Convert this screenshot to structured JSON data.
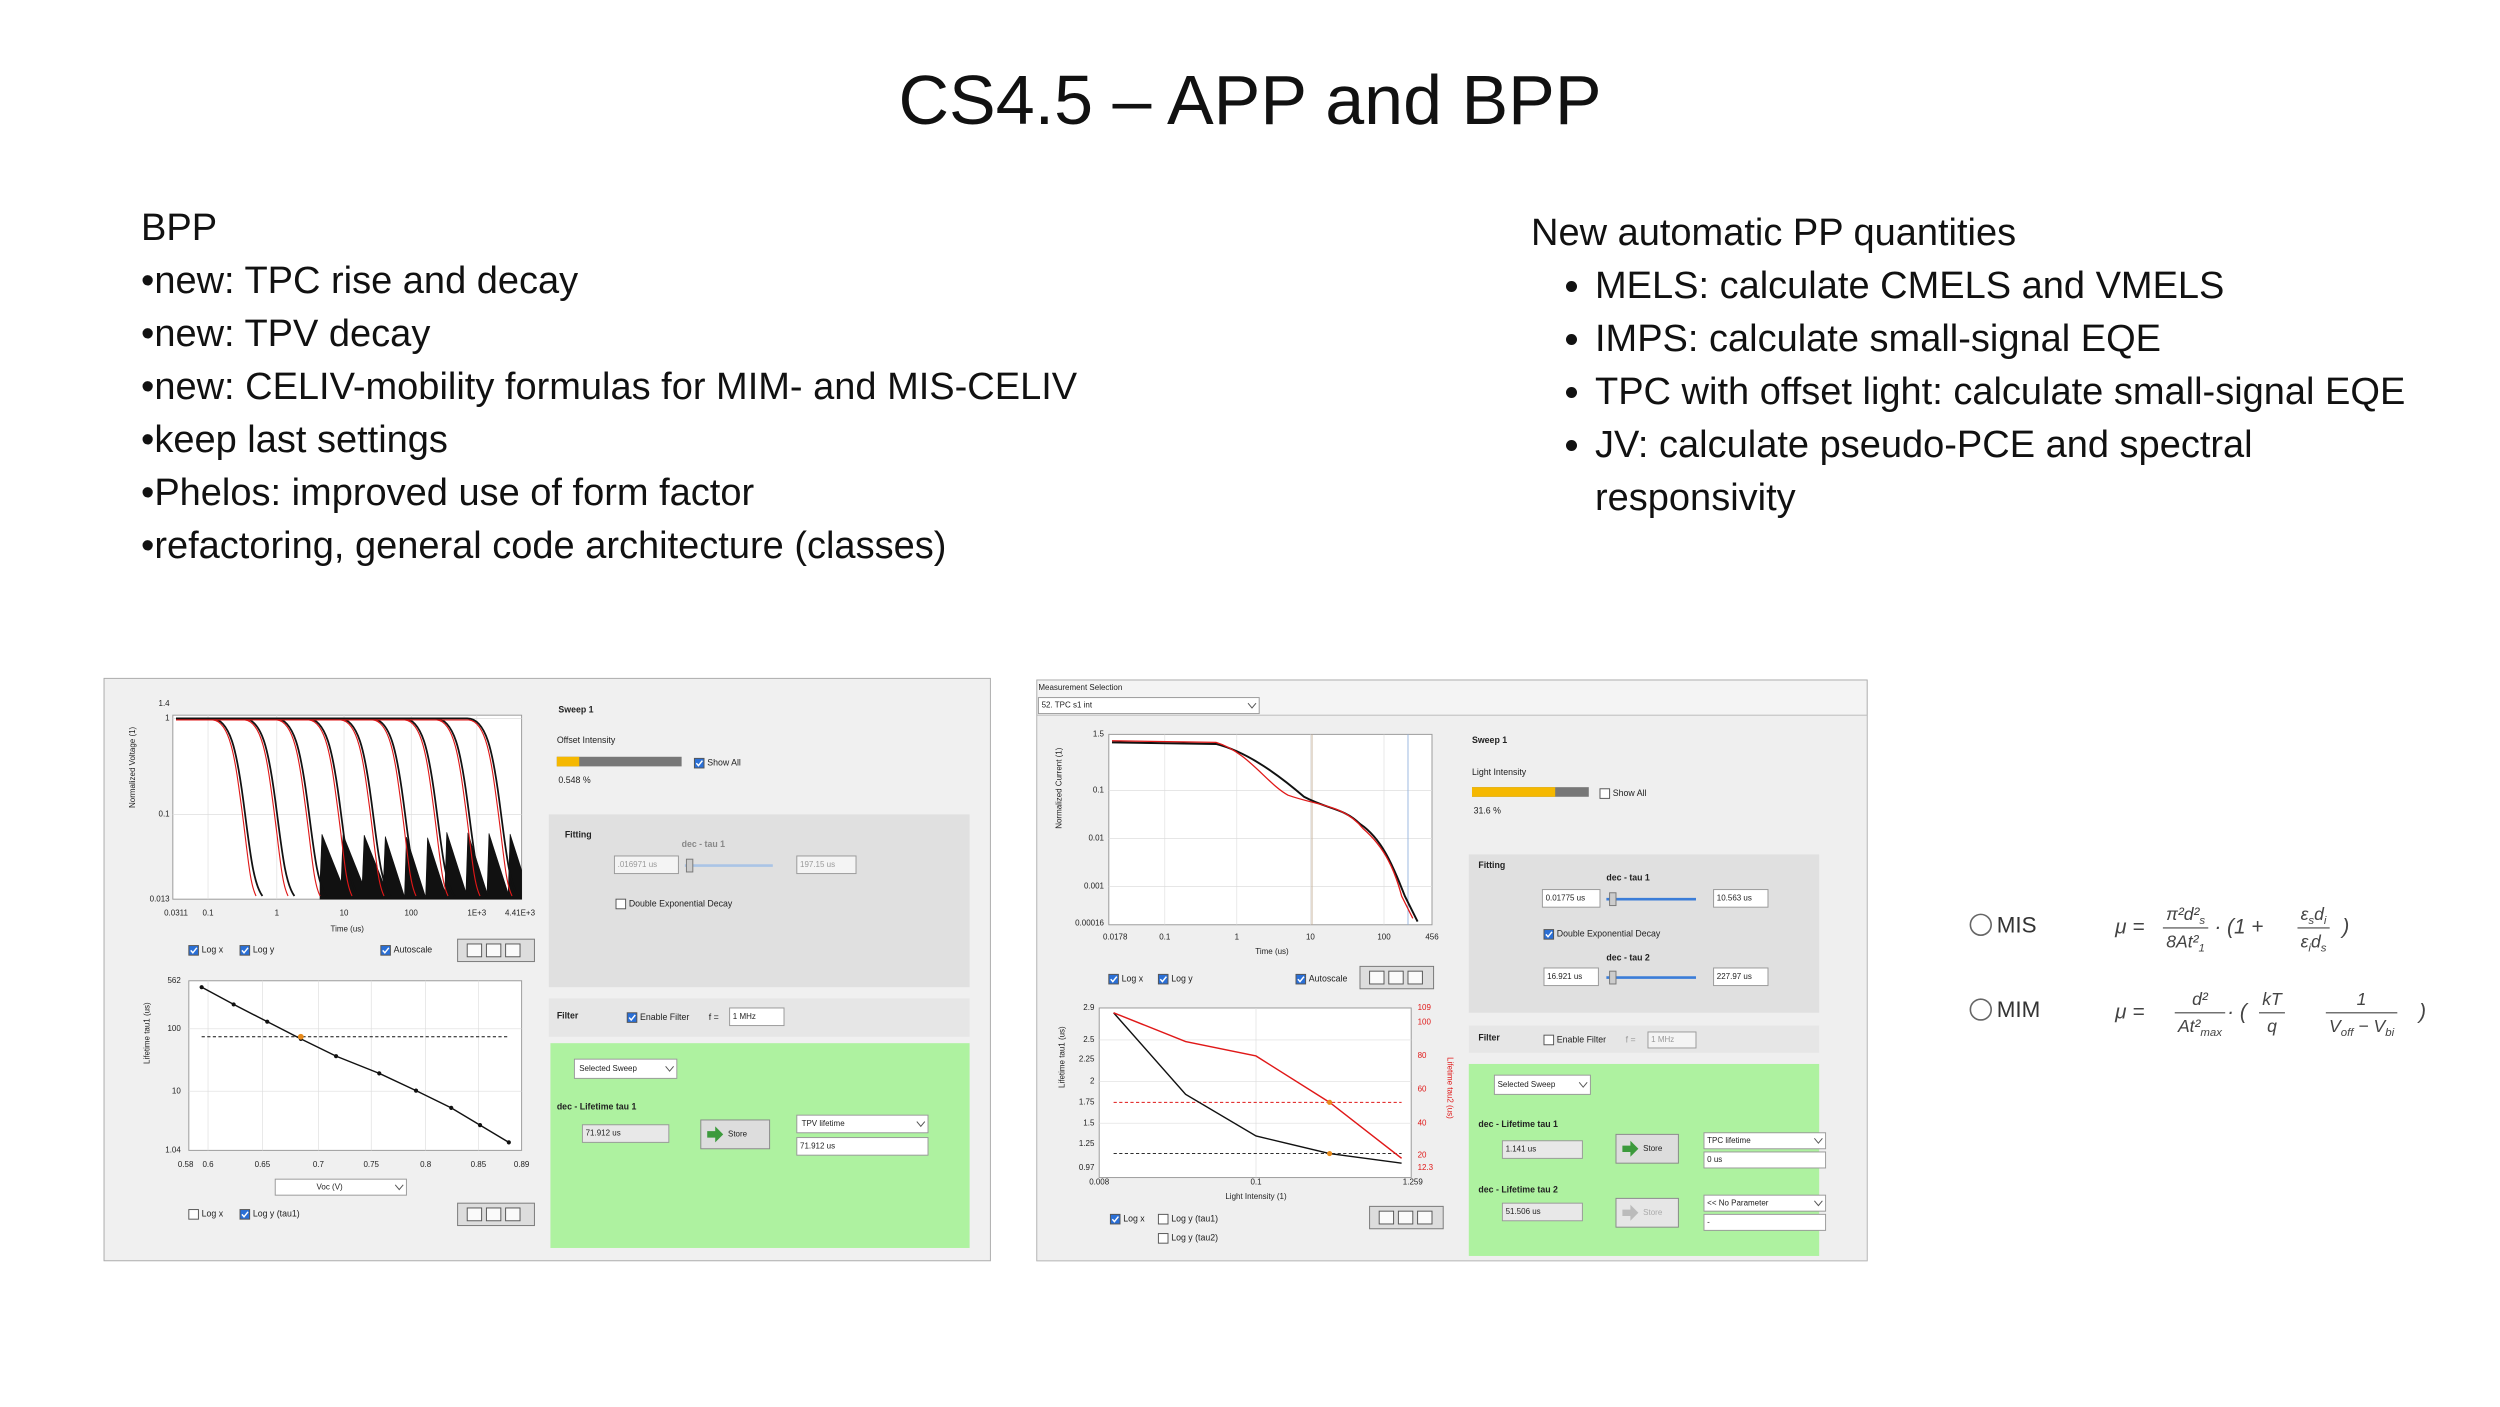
{
  "title": "CS4.5 – APP and BPP",
  "left": {
    "heading": "BPP",
    "items": [
      "new: TPC rise and decay",
      "new: TPV decay",
      "new: CELIV-mobility formulas for MIM- and MIS-CELIV",
      "keep last settings",
      "Phelos: improved use of form factor",
      "refactoring, general code architecture (classes)"
    ]
  },
  "right": {
    "heading": "New automatic PP quantities",
    "items": [
      "MELS: calculate CMELS and VMELS",
      "IMPS: calculate small-signal EQE",
      "TPC with offset light: calculate small-signal EQE",
      "JV: calculate pseudo-PCE and spectral responsivity"
    ]
  },
  "tpv": {
    "y_axis_label": "Normalized Voltage (1)",
    "y_ticks": [
      "1.4",
      "1",
      "0.1",
      "0.013"
    ],
    "x_ticks": [
      "0.0311",
      "0.1",
      "1",
      "10",
      "100",
      "1E+3",
      "4.41E+3"
    ],
    "x_axis_label": "Time (us)",
    "log_x": "Log x",
    "log_y": "Log y",
    "autoscale": "Autoscale",
    "sweep": "Sweep 1",
    "offset_intensity": "Offset Intensity",
    "show_all": "Show All",
    "intensity_value": "0.548 %",
    "fitting": "Fitting",
    "tau1_label": "dec - tau 1",
    "tau1_min": ".016971 us",
    "tau1_max": "197.15 us",
    "double_exp": "Double Exponential Decay",
    "filter": "Filter",
    "enable_filter": "Enable Filter",
    "f_eq": "f =",
    "f_value": "1 MHz",
    "selected_sweep": "Selected Sweep",
    "lifetime_tau1": "dec - Lifetime tau 1",
    "lifetime_tau1_value": "71.912 us",
    "store": "Store",
    "param": "TPV lifetime",
    "param_value": "71.912 us",
    "lower_y_label": "Lifetime tau1 (us)",
    "lower_y_ticks": [
      "562",
      "100",
      "10",
      "1.04"
    ],
    "lower_x_ticks": [
      "0.58",
      "0.6",
      "0.65",
      "0.7",
      "0.75",
      "0.8",
      "0.85",
      "0.89"
    ],
    "x_select": "Voc (V)",
    "lower_log_x": "Log x",
    "lower_log_y": "Log y (tau1)"
  },
  "tpc": {
    "measurement_selection": "Measurement Selection",
    "measurement": "52. TPC s1 int",
    "y_axis_label": "Normalized Current (1)",
    "y_ticks": [
      "1.5",
      "0.1",
      "0.01",
      "0.001",
      "0.00016"
    ],
    "x_ticks": [
      "0.0178",
      "0.1",
      "1",
      "10",
      "100",
      "456"
    ],
    "x_axis_label": "Time (us)",
    "log_x": "Log x",
    "log_y": "Log y",
    "autoscale": "Autoscale",
    "sweep": "Sweep 1",
    "light_intensity": "Light Intensity",
    "show_all": "Show All",
    "intensity_value": "31.6 %",
    "fitting": "Fitting",
    "tau1_label": "dec - tau 1",
    "tau1_min": "0.01775 us",
    "tau1_max": "10.563 us",
    "double_exp": "Double Exponential Decay",
    "tau2_label": "dec - tau 2",
    "tau2_min": "16.921 us",
    "tau2_max": "227.97 us",
    "filter": "Filter",
    "enable_filter": "Enable Filter",
    "f_eq": "f =",
    "f_value": "1 MHz",
    "selected_sweep": "Selected Sweep",
    "lifetime_tau1": "dec - Lifetime tau 1",
    "lifetime_tau1_value": "1.141 us",
    "store": "Store",
    "param": "TPC lifetime",
    "param_value": "0 us",
    "lifetime_tau2": "dec - Lifetime tau 2",
    "lifetime_tau2_value": "51.506 us",
    "store2": "Store",
    "param2": "<< No Parameter",
    "param2_value": "-",
    "lower_y_label": "Lifetime tau1 (us)",
    "lower_y_ticks": [
      "2.9",
      "2.5",
      "2.25",
      "2",
      "1.75",
      "1.5",
      "1.25",
      "0.97"
    ],
    "lower_y2_label": "Lifetime tau2 (us)",
    "lower_y2_ticks": [
      "109",
      "100",
      "80",
      "60",
      "40",
      "20",
      "12.3"
    ],
    "lower_x_ticks": [
      "0.008",
      "0.1",
      "1.259"
    ],
    "lower_x_label": "Light Intensity (1)",
    "lower_log_x": "Log x",
    "lower_log_y1": "Log y (tau1)",
    "lower_log_y2": "Log y (tau2)"
  },
  "formulas": {
    "mis": {
      "label": "MIS",
      "lhs": "μ =",
      "num": [
        "π²d²",
        "s"
      ],
      "den": [
        "8At²",
        "1"
      ],
      "mid": "· (1 +",
      "num2": [
        "ε",
        "s",
        "d",
        "i"
      ],
      "den2": [
        "ε",
        "i",
        "d",
        "s"
      ],
      "close": ")"
    },
    "mim": {
      "label": "MIM",
      "lhs": "μ =",
      "num": [
        "d²"
      ],
      "den": [
        "At²",
        "max"
      ],
      "mid": "· (",
      "num2": [
        "kT"
      ],
      "den2": [
        "q"
      ],
      "num3": [
        "1"
      ],
      "den3": [
        "V",
        "off",
        " − V",
        "bi"
      ],
      "close": ")"
    }
  }
}
